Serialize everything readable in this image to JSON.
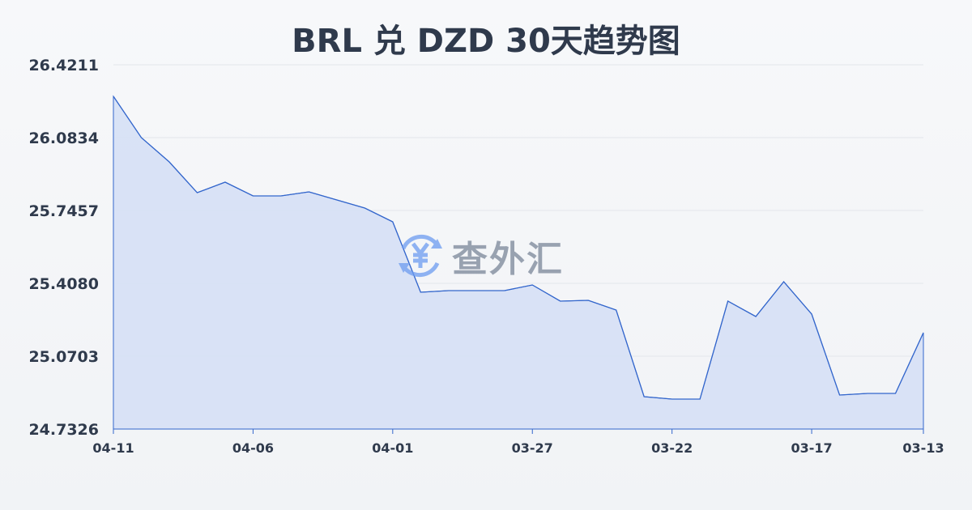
{
  "chart_data": {
    "type": "area",
    "title": "BRL 兑 DZD 30天趋势图",
    "xlabel": "",
    "ylabel": "",
    "x": [
      "04-11",
      "04-10",
      "04-09",
      "04-08",
      "04-07",
      "04-06",
      "04-05",
      "04-04",
      "04-03",
      "04-02",
      "04-01",
      "03-31",
      "03-30",
      "03-29",
      "03-28",
      "03-27",
      "03-26",
      "03-25",
      "03-24",
      "03-23",
      "03-22",
      "03-21",
      "03-20",
      "03-19",
      "03-18",
      "03-17",
      "03-16",
      "03-15",
      "03-14",
      "03-13"
    ],
    "values": [
      26.2748,
      26.0834,
      25.9708,
      25.8282,
      25.877,
      25.8132,
      25.8132,
      25.832,
      25.7945,
      25.757,
      25.6932,
      25.3667,
      25.3742,
      25.3742,
      25.3742,
      25.4005,
      25.3255,
      25.3292,
      25.2842,
      24.8827,
      24.8714,
      24.8714,
      25.3255,
      25.2542,
      25.4155,
      25.2654,
      24.8902,
      24.8977,
      24.8977,
      25.1791
    ],
    "xticks": [
      "04-11",
      "04-06",
      "04-01",
      "03-27",
      "03-22",
      "03-17",
      "03-13"
    ],
    "yticks": [
      "26.4211",
      "26.0834",
      "25.7457",
      "25.4080",
      "25.0703",
      "24.7326"
    ],
    "ylim": [
      24.7326,
      26.4211
    ],
    "grid": true,
    "line_color": "#3366cc",
    "fill_color": "#d6e0f5"
  },
  "watermark": {
    "text": "查外汇",
    "icon": "yen-exchange-icon"
  }
}
